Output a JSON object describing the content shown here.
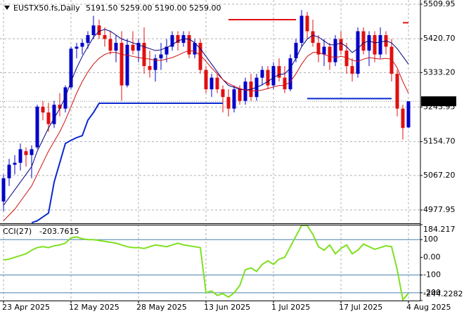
{
  "chart_data": [
    {
      "type": "candlestick",
      "symbol": "EUSTX50.fs,Daily",
      "header_values": [
        "5191.50",
        "5259.00",
        "5190.00",
        "5259.00"
      ],
      "x": [
        "23 Apr 2025",
        null,
        null,
        null,
        null,
        null,
        null,
        null,
        null,
        null,
        null,
        null,
        "12 May 2025",
        null,
        null,
        null,
        null,
        null,
        null,
        null,
        null,
        null,
        null,
        null,
        "28 May 2025",
        null,
        null,
        null,
        null,
        null,
        null,
        null,
        null,
        null,
        null,
        null,
        "13 Jun 2025",
        null,
        null,
        null,
        null,
        null,
        null,
        null,
        null,
        null,
        null,
        null,
        "1 Jul 2025",
        null,
        null,
        null,
        null,
        null,
        null,
        null,
        null,
        null,
        null,
        null,
        "17 Jul 2025",
        null,
        null,
        null,
        null,
        null,
        null,
        null,
        null,
        null,
        null,
        null,
        "4 Aug 2025"
      ],
      "open": [
        5000,
        5060,
        5095,
        5100,
        5130,
        5120,
        5140,
        5245,
        5230,
        5200,
        5250,
        5240,
        5295,
        5395,
        5400,
        5410,
        5430,
        5455,
        5430,
        5420,
        5390,
        5410,
        5300,
        5405,
        5390,
        5410,
        5350,
        5340,
        5370,
        5380,
        5400,
        5430,
        5410,
        5430,
        5380,
        5410,
        5340,
        5290,
        5320,
        5290,
        5270,
        5240,
        5290,
        5260,
        5310,
        5270,
        5320,
        5340,
        5300,
        5350,
        5320,
        5290,
        5370,
        5410,
        5480,
        5440,
        5410,
        5380,
        5400,
        5360,
        5420,
        5390,
        5350,
        5330,
        5440,
        5390,
        5430,
        5380,
        5430,
        5400,
        5330,
        5240,
        5191.5
      ],
      "high": [
        5070,
        5110,
        5120,
        5150,
        5140,
        5145,
        5250,
        5260,
        5255,
        5260,
        5280,
        5300,
        5400,
        5410,
        5420,
        5440,
        5480,
        5470,
        5450,
        5440,
        5430,
        5440,
        5420,
        5440,
        5420,
        5450,
        5390,
        5380,
        5410,
        5420,
        5440,
        5440,
        5440,
        5440,
        5420,
        5420,
        5350,
        5330,
        5330,
        5300,
        5290,
        5300,
        5300,
        5320,
        5330,
        5330,
        5350,
        5350,
        5360,
        5370,
        5350,
        5380,
        5420,
        5495,
        5490,
        5470,
        5430,
        5420,
        5410,
        5430,
        5440,
        5410,
        5370,
        5450,
        5450,
        5440,
        5440,
        5450,
        5440,
        5420,
        5340,
        5250,
        5259
      ],
      "low": [
        4975,
        5040,
        5070,
        5080,
        5090,
        5060,
        5135,
        5210,
        5180,
        5190,
        5220,
        5230,
        5290,
        5370,
        5380,
        5395,
        5420,
        5420,
        5400,
        5380,
        5360,
        5260,
        5295,
        5380,
        5360,
        5330,
        5320,
        5310,
        5340,
        5360,
        5390,
        5390,
        5400,
        5370,
        5370,
        5330,
        5280,
        5270,
        5280,
        5230,
        5220,
        5230,
        5250,
        5250,
        5260,
        5260,
        5300,
        5290,
        5290,
        5310,
        5280,
        5285,
        5360,
        5400,
        5420,
        5400,
        5360,
        5350,
        5340,
        5350,
        5380,
        5330,
        5310,
        5320,
        5380,
        5350,
        5360,
        5370,
        5380,
        5310,
        5220,
        5160,
        5190
      ],
      "close": [
        5060,
        5095,
        5100,
        5135,
        5120,
        5135,
        5245,
        5230,
        5200,
        5250,
        5240,
        5295,
        5395,
        5400,
        5410,
        5430,
        5455,
        5430,
        5420,
        5390,
        5410,
        5300,
        5405,
        5390,
        5410,
        5350,
        5340,
        5370,
        5380,
        5400,
        5430,
        5410,
        5430,
        5380,
        5410,
        5340,
        5290,
        5320,
        5290,
        5270,
        5240,
        5290,
        5260,
        5310,
        5270,
        5320,
        5340,
        5300,
        5350,
        5320,
        5290,
        5370,
        5410,
        5480,
        5440,
        5410,
        5380,
        5400,
        5360,
        5420,
        5390,
        5350,
        5330,
        5440,
        5390,
        5430,
        5380,
        5430,
        5400,
        5330,
        5240,
        5190,
        5259
      ],
      "up_color": "#0000c8",
      "down_color": "#e01010",
      "overlays": [
        {
          "color": "#000080",
          "width": 1,
          "values": [
            4990,
            5010,
            5030,
            5050,
            5070,
            5090,
            5130,
            5160,
            5190,
            5215,
            5240,
            5270,
            5310,
            5345,
            5375,
            5400,
            5425,
            5440,
            5445,
            5440,
            5430,
            5420,
            5415,
            5410,
            5405,
            5400,
            5395,
            5390,
            5392,
            5398,
            5405,
            5415,
            5420,
            5420,
            5410,
            5395,
            5375,
            5355,
            5335,
            5315,
            5300,
            5295,
            5290,
            5288,
            5290,
            5295,
            5302,
            5310,
            5320,
            5328,
            5330,
            5345,
            5370,
            5400,
            5420,
            5430,
            5425,
            5415,
            5405,
            5405,
            5410,
            5400,
            5385,
            5395,
            5410,
            5415,
            5410,
            5412,
            5415,
            5410,
            5395,
            5375,
            5355
          ]
        },
        {
          "color": "#d01010",
          "width": 1,
          "values": [
            4950,
            4965,
            4980,
            5000,
            5020,
            5040,
            5070,
            5100,
            5130,
            5155,
            5180,
            5210,
            5245,
            5280,
            5310,
            5335,
            5355,
            5370,
            5380,
            5385,
            5385,
            5380,
            5378,
            5375,
            5372,
            5370,
            5368,
            5365,
            5365,
            5368,
            5372,
            5378,
            5385,
            5390,
            5388,
            5378,
            5362,
            5345,
            5330,
            5315,
            5305,
            5298,
            5292,
            5288,
            5286,
            5286,
            5288,
            5292,
            5296,
            5300,
            5300,
            5310,
            5330,
            5355,
            5375,
            5385,
            5385,
            5380,
            5375,
            5372,
            5375,
            5372,
            5365,
            5362,
            5368,
            5372,
            5370,
            5368,
            5370,
            5368,
            5345,
            5310,
            5280
          ]
        },
        {
          "color": "#0a28d0",
          "width": 2,
          "values": [
            null,
            null,
            null,
            null,
            null,
            4945,
            4950,
            4960,
            4970,
            5050,
            5100,
            5150,
            5158,
            5165,
            5170,
            5210,
            5230,
            5254,
            5254,
            5254,
            5254,
            5254,
            5254,
            5254,
            5254,
            5254,
            5254,
            5254,
            5254,
            5254,
            5254,
            5254,
            5254,
            5254,
            5254,
            5254,
            5254,
            5254,
            5254,
            5254,
            null,
            null,
            null,
            null,
            null,
            null,
            null,
            null,
            null,
            null,
            null,
            null,
            null,
            null,
            5266,
            5266,
            5266,
            5266,
            5266,
            5266,
            5266,
            5266,
            5266,
            5266,
            5266,
            5266,
            5266,
            5266,
            5266,
            5266,
            null,
            null,
            null
          ]
        },
        {
          "color": "#e01010",
          "width": 2,
          "values": [
            null,
            null,
            null,
            null,
            null,
            null,
            null,
            null,
            null,
            null,
            null,
            null,
            null,
            null,
            null,
            null,
            null,
            null,
            null,
            null,
            null,
            null,
            null,
            null,
            null,
            null,
            null,
            null,
            null,
            null,
            null,
            null,
            null,
            null,
            null,
            null,
            null,
            null,
            null,
            null,
            5470,
            5470,
            5470,
            5470,
            5470,
            5470,
            5470,
            5470,
            5470,
            5470,
            5470,
            5470,
            5470,
            null,
            null,
            null,
            null,
            null,
            null,
            null,
            null,
            null,
            null,
            null,
            null,
            null,
            null,
            null,
            null,
            null,
            null,
            5462,
            5462
          ]
        }
      ],
      "price_marker": {
        "value": 5259,
        "label": "5259.00"
      },
      "ylim": [
        4943.5,
        5520.8
      ],
      "yticks": [
        5509.95,
        {
          "value": 5420.7,
          "label": "5420.70"
        },
        {
          "value": 5333.2,
          "label": "5333.20"
        },
        5243.95,
        {
          "value": 5154.7,
          "label": "5154.70"
        },
        {
          "value": 5067.2,
          "label": "5067.20"
        },
        4977.95
      ],
      "grid": true
    },
    {
      "type": "line",
      "title": "CCI(27)",
      "color": "#7fe020",
      "values": [
        -15,
        -10,
        0,
        10,
        20,
        40,
        55,
        60,
        55,
        65,
        70,
        80,
        110,
        115,
        105,
        100,
        100,
        95,
        90,
        85,
        80,
        70,
        60,
        55,
        55,
        50,
        60,
        70,
        65,
        60,
        70,
        80,
        70,
        65,
        60,
        55,
        -200,
        -190,
        -215,
        -205,
        -225,
        -200,
        -160,
        -70,
        -60,
        -80,
        -40,
        -20,
        -40,
        -10,
        0,
        60,
        120,
        180,
        180,
        130,
        60,
        40,
        70,
        20,
        50,
        70,
        20,
        40,
        75,
        60,
        45,
        55,
        65,
        60,
        -70,
        -240,
        -203.7615
      ],
      "ylim": [
        -244.2282,
        184.217
      ],
      "yticks": [
        184.217,
        100,
        {
          "value": 0,
          "label": "0.00"
        },
        -100,
        -200,
        -244.2282
      ],
      "levels": [
        100,
        -100,
        -200
      ],
      "level_color": "#4682b4"
    }
  ]
}
